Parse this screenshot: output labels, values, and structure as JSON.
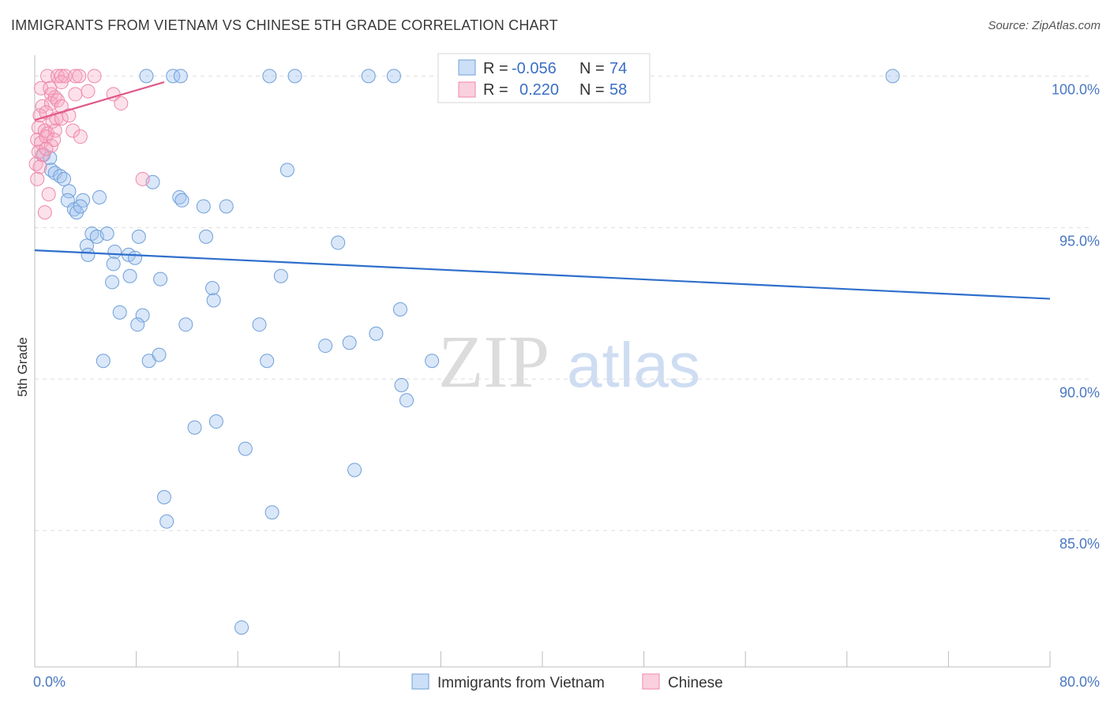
{
  "title": "IMMIGRANTS FROM VIETNAM VS CHINESE 5TH GRADE CORRELATION CHART",
  "source": "Source: ZipAtlas.com",
  "watermark": {
    "zip": "ZIP",
    "atlas": "atlas"
  },
  "colors": {
    "blue_fill": "rgba(160,196,240,0.40)",
    "blue_stroke": "#6f9fd8",
    "blue_line": "#2f6fcc",
    "pink_fill": "rgba(246,170,196,0.35)",
    "pink_stroke": "#ee88aa",
    "pink_line": "#e0588a",
    "grid": "#dddddd",
    "axis_text": "#4a78c2"
  },
  "chart_data": {
    "type": "scatter",
    "xlabel": "",
    "ylabel": "5th Grade",
    "xlim": [
      0,
      80
    ],
    "ylim": [
      80.5,
      101.0
    ],
    "x_tick_labels": [
      {
        "value": 0,
        "label": "0.0%"
      },
      {
        "value": 80,
        "label": "80.0%"
      }
    ],
    "x_minor_ticks": [
      0,
      8,
      16,
      24,
      32,
      40,
      48,
      56,
      64,
      72,
      80
    ],
    "y_ticks": [
      {
        "value": 85,
        "label": "85.0%"
      },
      {
        "value": 90,
        "label": "90.0%"
      },
      {
        "value": 95,
        "label": "95.0%"
      },
      {
        "value": 100,
        "label": "100.0%"
      }
    ],
    "legend": {
      "entries": [
        {
          "series": "Immigrants from Vietnam",
          "r_label": "R =",
          "r_value": "-0.056",
          "n_label": "N =",
          "n_value": "74"
        },
        {
          "series": "Chinese",
          "r_label": "R =",
          "r_value": "0.220",
          "n_label": "N =",
          "n_value": "58"
        }
      ]
    },
    "series": [
      {
        "name": "Immigrants from Vietnam",
        "color": "blue",
        "trend": {
          "x": [
            0,
            80
          ],
          "y": [
            94.25,
            92.65
          ]
        },
        "points": [
          [
            8.8,
            100.0
          ],
          [
            10.9,
            100.0
          ],
          [
            11.5,
            100.0
          ],
          [
            18.5,
            100.0
          ],
          [
            20.5,
            100.0
          ],
          [
            26.3,
            100.0
          ],
          [
            28.3,
            100.0
          ],
          [
            67.6,
            100.0
          ],
          [
            0.7,
            97.4
          ],
          [
            1.2,
            97.3
          ],
          [
            1.3,
            96.9
          ],
          [
            1.6,
            96.8
          ],
          [
            2.0,
            96.7
          ],
          [
            2.3,
            96.6
          ],
          [
            9.3,
            96.5
          ],
          [
            19.9,
            96.9
          ],
          [
            2.7,
            96.2
          ],
          [
            5.1,
            96.0
          ],
          [
            2.6,
            95.9
          ],
          [
            3.8,
            95.9
          ],
          [
            11.4,
            96.0
          ],
          [
            11.6,
            95.9
          ],
          [
            13.3,
            95.7
          ],
          [
            15.1,
            95.7
          ],
          [
            3.1,
            95.6
          ],
          [
            3.3,
            95.5
          ],
          [
            3.6,
            95.7
          ],
          [
            4.5,
            94.8
          ],
          [
            4.9,
            94.7
          ],
          [
            5.7,
            94.8
          ],
          [
            8.2,
            94.7
          ],
          [
            13.5,
            94.7
          ],
          [
            4.1,
            94.4
          ],
          [
            6.3,
            94.2
          ],
          [
            4.2,
            94.1
          ],
          [
            7.4,
            94.1
          ],
          [
            7.9,
            94.0
          ],
          [
            6.2,
            93.8
          ],
          [
            23.9,
            94.5
          ],
          [
            6.1,
            93.2
          ],
          [
            7.5,
            93.4
          ],
          [
            9.9,
            93.3
          ],
          [
            14.0,
            93.0
          ],
          [
            14.1,
            92.6
          ],
          [
            19.4,
            93.4
          ],
          [
            28.8,
            92.3
          ],
          [
            6.7,
            92.2
          ],
          [
            8.5,
            92.1
          ],
          [
            8.1,
            91.8
          ],
          [
            11.9,
            91.8
          ],
          [
            17.7,
            91.8
          ],
          [
            22.9,
            91.1
          ],
          [
            24.8,
            91.2
          ],
          [
            26.9,
            91.5
          ],
          [
            5.4,
            90.6
          ],
          [
            9.0,
            90.6
          ],
          [
            9.8,
            90.8
          ],
          [
            18.3,
            90.6
          ],
          [
            31.3,
            90.6
          ],
          [
            28.9,
            89.8
          ],
          [
            29.3,
            89.3
          ],
          [
            12.6,
            88.4
          ],
          [
            14.3,
            88.6
          ],
          [
            16.6,
            87.7
          ],
          [
            25.2,
            87.0
          ],
          [
            10.2,
            86.1
          ],
          [
            10.4,
            85.3
          ],
          [
            18.7,
            85.6
          ],
          [
            16.3,
            81.8
          ]
        ]
      },
      {
        "name": "Chinese",
        "color": "pink",
        "trend": {
          "x": [
            0,
            10.2
          ],
          "y": [
            98.55,
            99.8
          ]
        },
        "points": [
          [
            1.0,
            100.0
          ],
          [
            1.8,
            100.0
          ],
          [
            2.1,
            100.0
          ],
          [
            2.4,
            100.0
          ],
          [
            3.2,
            100.0
          ],
          [
            3.5,
            100.0
          ],
          [
            4.7,
            100.0
          ],
          [
            0.5,
            99.6
          ],
          [
            1.3,
            99.4
          ],
          [
            1.6,
            99.3
          ],
          [
            1.2,
            99.6
          ],
          [
            2.1,
            99.8
          ],
          [
            3.2,
            99.4
          ],
          [
            4.2,
            99.5
          ],
          [
            6.2,
            99.4
          ],
          [
            0.6,
            99.0
          ],
          [
            1.3,
            99.1
          ],
          [
            1.8,
            99.2
          ],
          [
            2.1,
            99.0
          ],
          [
            6.8,
            99.1
          ],
          [
            0.4,
            98.7
          ],
          [
            0.9,
            98.8
          ],
          [
            1.4,
            98.5
          ],
          [
            1.7,
            98.6
          ],
          [
            2.1,
            98.6
          ],
          [
            2.7,
            98.7
          ],
          [
            0.3,
            98.3
          ],
          [
            0.8,
            98.2
          ],
          [
            1.0,
            98.1
          ],
          [
            1.6,
            98.2
          ],
          [
            3.0,
            98.2
          ],
          [
            3.6,
            98.0
          ],
          [
            0.2,
            97.9
          ],
          [
            0.5,
            97.8
          ],
          [
            0.9,
            98.0
          ],
          [
            1.3,
            97.7
          ],
          [
            1.5,
            97.9
          ],
          [
            0.3,
            97.5
          ],
          [
            0.6,
            97.4
          ],
          [
            0.9,
            97.6
          ],
          [
            0.1,
            97.1
          ],
          [
            0.4,
            97.0
          ],
          [
            0.2,
            96.6
          ],
          [
            1.1,
            96.1
          ],
          [
            0.8,
            95.5
          ],
          [
            8.5,
            96.6
          ]
        ]
      }
    ]
  }
}
